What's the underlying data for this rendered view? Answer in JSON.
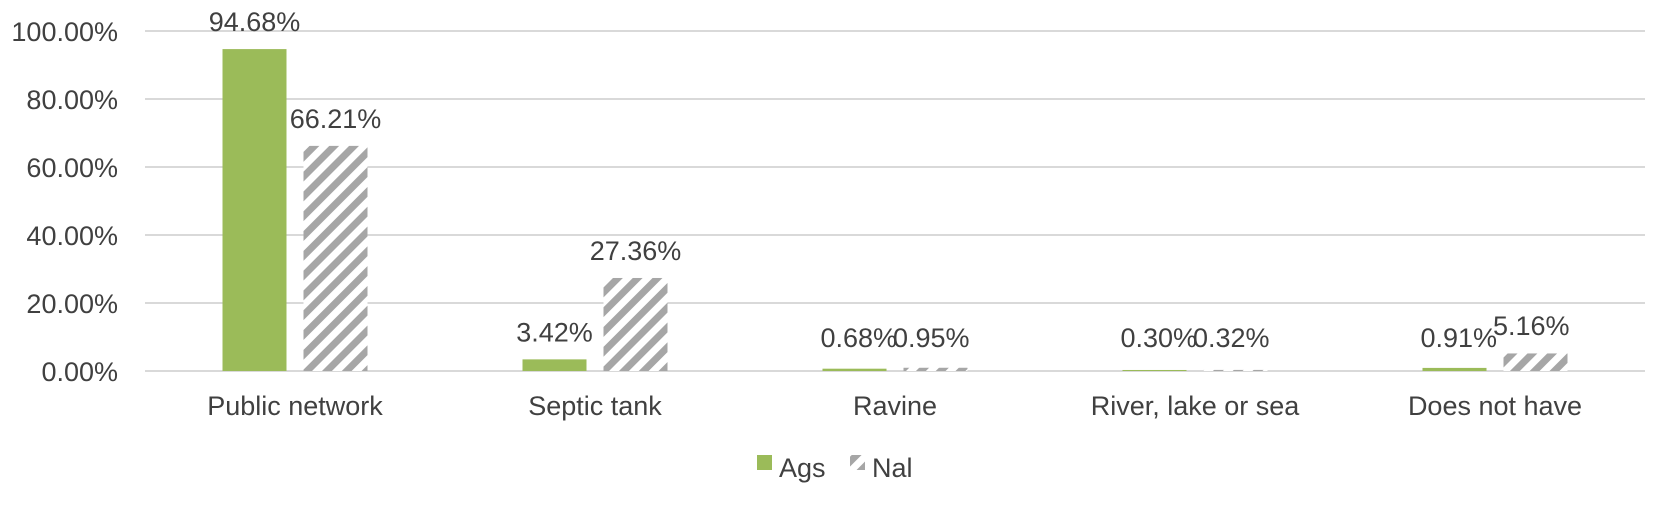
{
  "chart_data": {
    "type": "bar",
    "categories": [
      "Public network",
      "Septic tank",
      "Ravine",
      "River, lake or sea",
      "Does not have"
    ],
    "series": [
      {
        "name": "Ags",
        "values": [
          94.68,
          3.42,
          0.68,
          0.3,
          0.91
        ],
        "labels": [
          "94.68%",
          "3.42%",
          "0.68%",
          "0.30%",
          "0.91%"
        ],
        "color": "#9bbb59",
        "pattern": "solid"
      },
      {
        "name": "Nal",
        "values": [
          66.21,
          27.36,
          0.95,
          0.32,
          5.16
        ],
        "labels": [
          "66.21%",
          "27.36%",
          "0.95%",
          "0.32%",
          "5.16%"
        ],
        "color": "#a6a6a6",
        "pattern": "diagonal-hatch"
      }
    ],
    "ylim": [
      0,
      100
    ],
    "yticks": [
      "0.00%",
      "20.00%",
      "40.00%",
      "60.00%",
      "80.00%",
      "100.00%"
    ],
    "ytick_values": [
      0,
      20,
      40,
      60,
      80,
      100
    ],
    "grid": true,
    "legend_position": "bottom"
  }
}
